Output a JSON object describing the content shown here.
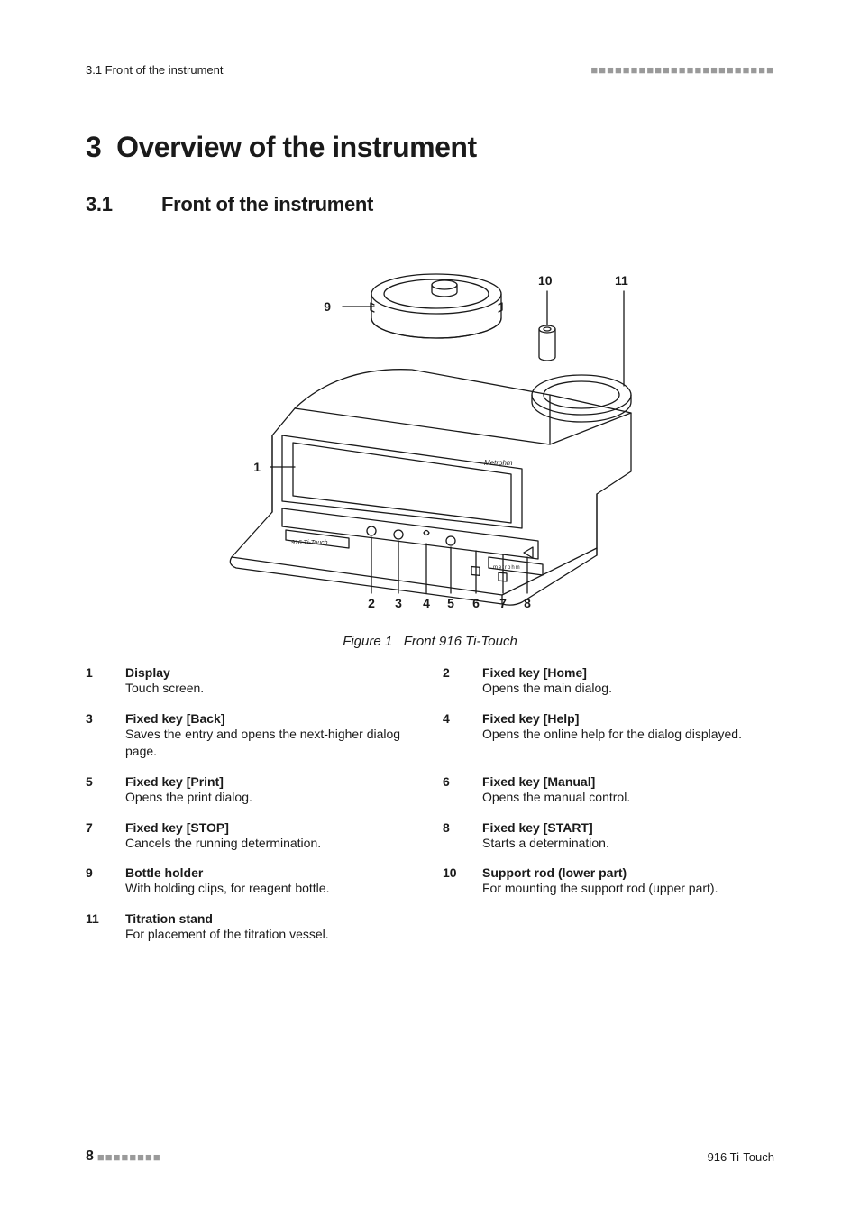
{
  "header": {
    "left": "3.1 Front of the instrument",
    "dashes": "■■■■■■■■■■■■■■■■■■■■■■■"
  },
  "chapter": {
    "num": "3",
    "title": "Overview of the instrument"
  },
  "section": {
    "num": "3.1",
    "title": "Front of the instrument"
  },
  "figure": {
    "caption_prefix": "Figure 1",
    "caption_text": "Front 916 Ti-Touch",
    "callouts": {
      "c1": "1",
      "c2": "2",
      "c3": "3",
      "c4": "4",
      "c5": "5",
      "c6": "6",
      "c7": "7",
      "c8": "8",
      "c9": "9",
      "c10": "10",
      "c11": "11"
    },
    "brand_top": "Metrohm",
    "brand_bottom": "916  Ti-Touch",
    "brand_side": "metrohm",
    "style": {
      "stroke": "#1a1a1a",
      "stroke_width": 1.3,
      "callout_fontsize": 14,
      "callout_fontweight": 900
    }
  },
  "legend": [
    {
      "num": "1",
      "term": "Display",
      "desc": "Touch screen."
    },
    {
      "num": "2",
      "term": "Fixed key [Home]",
      "desc": "Opens the main dialog."
    },
    {
      "num": "3",
      "term": "Fixed key [Back]",
      "desc": "Saves the entry and opens the next-higher dialog page."
    },
    {
      "num": "4",
      "term": "Fixed key [Help]",
      "desc": "Opens the online help for the dialog displayed."
    },
    {
      "num": "5",
      "term": "Fixed key [Print]",
      "desc": "Opens the print dialog."
    },
    {
      "num": "6",
      "term": "Fixed key [Manual]",
      "desc": "Opens the manual control."
    },
    {
      "num": "7",
      "term": "Fixed key [STOP]",
      "desc": "Cancels the running determination."
    },
    {
      "num": "8",
      "term": "Fixed key [START]",
      "desc": "Starts a determination."
    },
    {
      "num": "9",
      "term": "Bottle holder",
      "desc": "With holding clips, for reagent bottle."
    },
    {
      "num": "10",
      "term": "Support rod (lower part)",
      "desc": "For mounting the support rod (upper part)."
    },
    {
      "num": "11",
      "term": "Titration stand",
      "desc": "For placement of the titration vessel."
    }
  ],
  "footer": {
    "page": "8",
    "dashes": "■■■■■■■■",
    "right": "916 Ti-Touch"
  },
  "colors": {
    "text": "#1a1a1a",
    "dash": "#9a9a9a",
    "bg": "#ffffff"
  }
}
